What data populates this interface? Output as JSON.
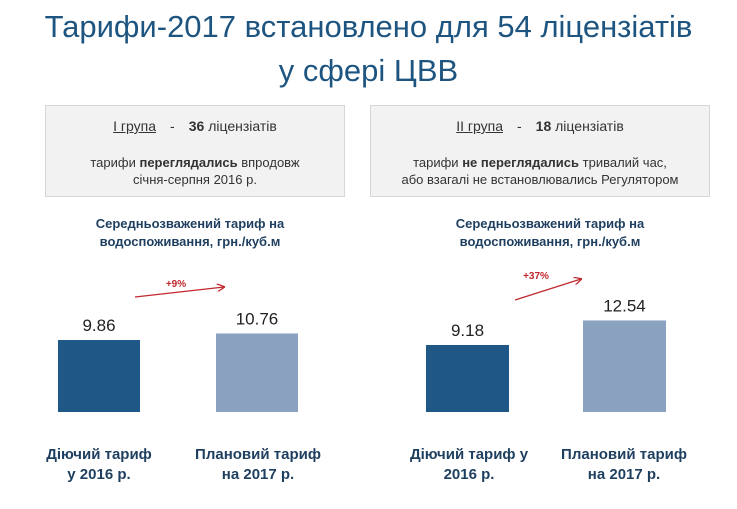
{
  "title_line1": "Тарифи-2017 встановлено для 54 ліцензіатів",
  "title_line2": "у сфері ЦВВ",
  "groups": [
    {
      "group_label": "I група",
      "dash": "-",
      "count": "36",
      "count_suffix": "ліцензіатів",
      "desc_pre": "тарифи ",
      "desc_bold": "переглядались",
      "desc_post": " впродовж",
      "desc_line2": "січня-серпня 2016 р."
    },
    {
      "group_label": "II група",
      "dash": "-",
      "count": "18",
      "count_suffix": "ліцензіатів",
      "desc_pre": "тарифи ",
      "desc_bold": "не переглядались",
      "desc_post": " тривалий час,",
      "desc_line2": "або взагалі не встановлювались Регулятором"
    }
  ],
  "chart_data": [
    {
      "type": "bar",
      "title": "Середньозважений тариф  на водоспоживання, грн./куб.м",
      "categories": [
        "Діючий тариф у 2016 р.",
        "Плановий тариф на 2017 р."
      ],
      "values": [
        9.86,
        10.76
      ],
      "value_labels": [
        "9.86",
        "10.76"
      ],
      "annotation": "+9%",
      "colors": [
        "#1f5787",
        "#8aa2c0"
      ]
    },
    {
      "type": "bar",
      "title": "Середньозважений тариф  на водоспоживання, грн./куб.м",
      "categories": [
        "Діючий тариф у 2016 р.",
        "Плановий тариф на 2017 р."
      ],
      "values": [
        9.18,
        12.54
      ],
      "value_labels": [
        "9.18",
        "12.54"
      ],
      "annotation": "+37%",
      "colors": [
        "#1f5787",
        "#8aa2c0"
      ]
    }
  ],
  "sub_titles": [
    {
      "line1": "Середньозважений тариф  на",
      "line2": "водоспоживання, грн./куб.м"
    },
    {
      "line1": "Середньозважений тариф  на",
      "line2": "водоспоживання, грн./куб.м"
    }
  ],
  "cat_labels": [
    {
      "line1": "Діючий тариф",
      "line2": "у 2016 р."
    },
    {
      "line1": "Плановий тариф",
      "line2": "на 2017 р."
    },
    {
      "line1": "Діючий тариф у",
      "line2": "2016 р."
    },
    {
      "line1": "Плановий тариф",
      "line2": "на 2017 р."
    }
  ],
  "accent_color": "#c0282d"
}
